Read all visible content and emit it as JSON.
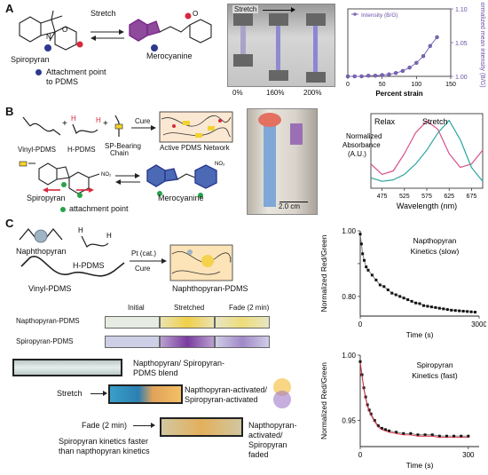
{
  "panels": {
    "a": "A",
    "b": "B",
    "c": "C"
  },
  "panel_a": {
    "stretch_label": "Stretch",
    "spiropyran_label": "Spiropyran",
    "merocyanine_label": "Merocyanine",
    "attachment_label_line1": "Attachment point",
    "attachment_label_line2": "to PDMS",
    "photo_stretch_label": "Stretch",
    "strain_labels": [
      "0%",
      "160%",
      "200%"
    ],
    "colors": {
      "attachment_dot": "#2b3a8f",
      "merocyanine": "#7a2a8a",
      "series": "#7b68b6",
      "red_marker": "#d9273b"
    }
  },
  "panel_b": {
    "reagents": [
      "Vinyl-PDMS",
      "H-PDMS",
      "SP-Bearing Chain"
    ],
    "cure_label": "Cure",
    "network_label": "Active PDMS Network",
    "spiropyran_label": "Spiropyran",
    "merocyanine_label": "Merocyanine",
    "attachment_label": "attachment point",
    "scalebar_label": "2.0 cm",
    "colors": {
      "attachment_dot": "#27a34a",
      "relax": "#d94f8a",
      "stretch": "#2aa5a0"
    }
  },
  "panel_c": {
    "naphthopyran_label": "Naphthopyran",
    "hpdms_label": "H-PDMS",
    "vinyl_label": "Vinyl-PDMS",
    "catalyst_label": "Pt (cat.)",
    "cure_label": "Cure",
    "product_label": "Naphthopyran-PDMS",
    "strip_headers": [
      "Initial",
      "Stretched",
      "Fade (2 min)"
    ],
    "strip_rows": [
      "Napthopyran-PDMS",
      "Spiropyran-PDMS"
    ],
    "blend_label_line1": "Napthopyran/ Spiropyran-",
    "blend_label_line2": "PDMS blend",
    "stretch_label": "Stretch",
    "activated_line1": "Napthopyran-activated/",
    "activated_line2": "Spiropyran-activated",
    "fade_label": "Fade (2 min)",
    "faded_line1": "Napthopyran-",
    "faded_line2": "activated/",
    "faded_line3": "Spiropyran",
    "faded_line4": "faded",
    "kinetics_note_line1": "Spiropyran kinetics faster",
    "kinetics_note_line2": "than napthopyran kinetics"
  },
  "chart_data": [
    {
      "type": "line",
      "title": "",
      "legend": "Intensity (B/G)",
      "legend_position": "top-left",
      "xlabel": "Percent strain",
      "ylabel": "Normalized mean intensity (B/G)",
      "y_axis_side": "right",
      "xlim": [
        0,
        150
      ],
      "ylim": [
        1.0,
        1.1
      ],
      "xticks": [
        0,
        50,
        100,
        150
      ],
      "yticks": [
        1.0,
        1.05,
        1.1
      ],
      "series": [
        {
          "name": "Intensity (B/G)",
          "x": [
            0,
            10,
            20,
            30,
            40,
            50,
            60,
            70,
            80,
            90,
            100,
            110,
            120,
            130
          ],
          "y": [
            1.0,
            1.0,
            1.0,
            1.001,
            1.001,
            1.002,
            1.003,
            1.005,
            1.008,
            1.013,
            1.02,
            1.03,
            1.045,
            1.058
          ]
        }
      ]
    },
    {
      "type": "line",
      "xlabel": "Wavelength (nm)",
      "ylabel": "Normalized Absorbance (A.U.)",
      "xlim": [
        450,
        700
      ],
      "xticks": [
        475,
        525,
        575,
        625,
        675
      ],
      "series_labels": [
        "Relax",
        "Stretch"
      ],
      "series": [
        {
          "name": "Relax",
          "x": [
            450,
            475,
            500,
            525,
            550,
            575,
            600,
            625,
            650,
            675,
            700
          ],
          "y": [
            0.35,
            0.2,
            0.25,
            0.5,
            0.8,
            0.97,
            0.85,
            0.5,
            0.3,
            0.35,
            0.55
          ]
        },
        {
          "name": "Stretch",
          "x": [
            450,
            475,
            500,
            525,
            550,
            575,
            600,
            625,
            650,
            675,
            700
          ],
          "y": [
            0.15,
            0.1,
            0.12,
            0.2,
            0.35,
            0.55,
            0.8,
            0.98,
            0.7,
            0.3,
            0.1
          ]
        }
      ]
    },
    {
      "type": "scatter",
      "title": "Napthopyran Kinetics (slow)",
      "xlabel": "Time (s)",
      "ylabel": "Normalized Red/Green",
      "xlim": [
        0,
        3000
      ],
      "ylim": [
        0.74,
        1.0
      ],
      "xticks": [
        0,
        3000
      ],
      "yticks": [
        0.8,
        0.9,
        1.0
      ],
      "ytick_labels": [
        "0.80",
        "",
        "1.00"
      ],
      "series": [
        {
          "name": "data",
          "x": [
            0,
            30,
            60,
            100,
            150,
            200,
            300,
            400,
            500,
            600,
            700,
            800,
            900,
            1000,
            1100,
            1200,
            1300,
            1400,
            1500,
            1600,
            1700,
            1800,
            1900,
            2000,
            2100,
            2200,
            2300,
            2400,
            2500,
            2600,
            2700,
            2800,
            2900
          ],
          "y": [
            0.99,
            0.96,
            0.93,
            0.91,
            0.89,
            0.88,
            0.865,
            0.85,
            0.835,
            0.83,
            0.82,
            0.81,
            0.805,
            0.8,
            0.795,
            0.79,
            0.785,
            0.78,
            0.778,
            0.772,
            0.77,
            0.768,
            0.766,
            0.764,
            0.762,
            0.76,
            0.758,
            0.757,
            0.756,
            0.755,
            0.754,
            0.753,
            0.752
          ]
        }
      ]
    },
    {
      "type": "scatter",
      "title": "Spiropyran Kinetics (fast)",
      "xlabel": "Time (s)",
      "ylabel": "Normalized Red/Green",
      "xlim": [
        0,
        330
      ],
      "ylim": [
        0.93,
        1.0
      ],
      "xticks": [
        0,
        300
      ],
      "yticks": [
        0.95,
        1.0
      ],
      "ytick_labels": [
        "0.95",
        "1.00"
      ],
      "series": [
        {
          "name": "data",
          "x": [
            0,
            5,
            10,
            15,
            20,
            25,
            30,
            40,
            50,
            60,
            70,
            80,
            100,
            120,
            140,
            160,
            180,
            200,
            220,
            240,
            260,
            280,
            300
          ],
          "y": [
            0.995,
            0.985,
            0.975,
            0.968,
            0.962,
            0.958,
            0.955,
            0.95,
            0.946,
            0.944,
            0.943,
            0.942,
            0.941,
            0.94,
            0.94,
            0.939,
            0.939,
            0.939,
            0.938,
            0.938,
            0.938,
            0.938,
            0.938
          ]
        }
      ]
    }
  ]
}
